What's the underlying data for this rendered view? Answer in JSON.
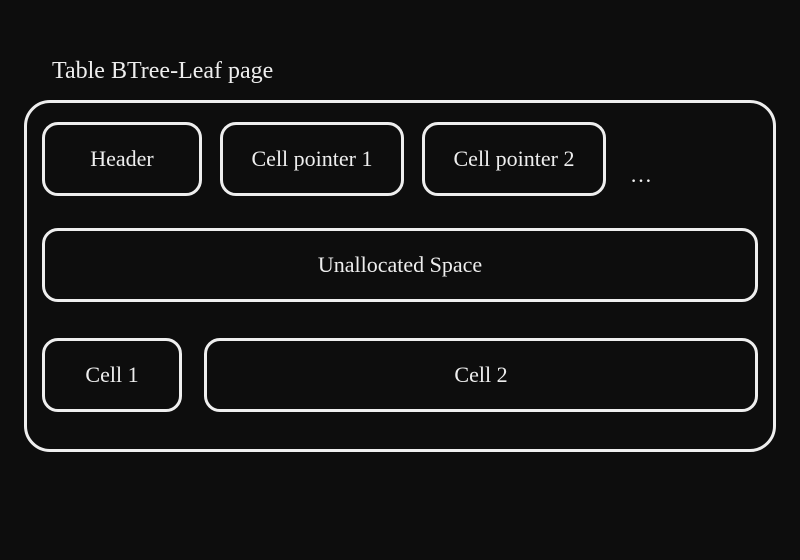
{
  "diagram": {
    "title": "Table BTree-Leaf page",
    "ellipsis": "…",
    "boxes": {
      "header": "Header",
      "cell_pointer_1": "Cell pointer 1",
      "cell_pointer_2": "Cell pointer 2",
      "unallocated": "Unallocated Space",
      "cell_1": "Cell 1",
      "cell_2": "Cell 2"
    },
    "style": {
      "background_color": "#0d0d0d",
      "stroke_color": "#eeeeee",
      "text_color": "#eeeeee",
      "outer_border_width": 3,
      "inner_border_width": 3,
      "outer_border_radius": 26,
      "inner_border_radius": 16,
      "font_family": "Comic Sans MS, Segoe Script, Bradley Hand, cursive",
      "title_fontsize": 24,
      "box_fontsize": 22
    }
  }
}
